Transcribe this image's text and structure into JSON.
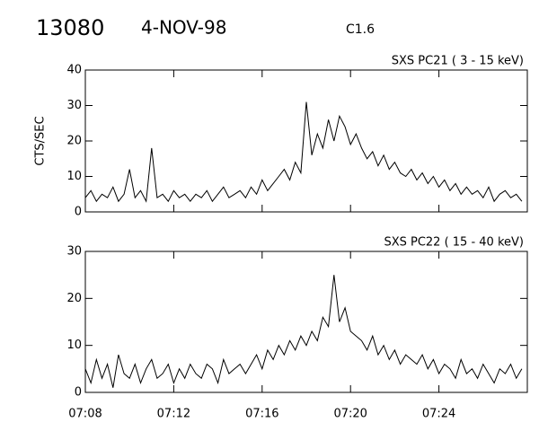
{
  "header": {
    "id": "13080",
    "date": "4-NOV-98",
    "class": "C1.6"
  },
  "chart_data": [
    {
      "type": "line",
      "title": "SXS PC21  (  3 - 15 keV)",
      "y_label": "CTS/SEC",
      "color": "#000000",
      "xlim": [
        428,
        448
      ],
      "xticks": [
        428,
        432,
        436,
        440,
        444
      ],
      "ylim": [
        0,
        40
      ],
      "yticks": [
        0,
        10,
        20,
        30,
        40
      ],
      "x": [
        428,
        428.25,
        428.5,
        428.75,
        429,
        429.25,
        429.5,
        429.75,
        430,
        430.25,
        430.5,
        430.75,
        431,
        431.25,
        431.5,
        431.75,
        432,
        432.25,
        432.5,
        432.75,
        433,
        433.25,
        433.5,
        433.75,
        434,
        434.25,
        434.5,
        434.75,
        435,
        435.25,
        435.5,
        435.75,
        436,
        436.25,
        436.5,
        436.75,
        437,
        437.25,
        437.5,
        437.75,
        438,
        438.25,
        438.5,
        438.75,
        439,
        439.25,
        439.5,
        439.75,
        440,
        440.25,
        440.5,
        440.75,
        441,
        441.25,
        441.5,
        441.75,
        442,
        442.25,
        442.5,
        442.75,
        443,
        443.25,
        443.5,
        443.75,
        444,
        444.25,
        444.5,
        444.75,
        445,
        445.25,
        445.5,
        445.75,
        446,
        446.25,
        446.5,
        446.75,
        447,
        447.25,
        447.5,
        447.75
      ],
      "values": [
        4,
        6,
        3,
        5,
        4,
        7,
        3,
        5,
        12,
        4,
        6,
        3,
        18,
        4,
        5,
        3,
        6,
        4,
        5,
        3,
        5,
        4,
        6,
        3,
        5,
        7,
        4,
        5,
        6,
        4,
        7,
        5,
        9,
        6,
        8,
        10,
        12,
        9,
        14,
        11,
        31,
        16,
        22,
        18,
        26,
        20,
        27,
        24,
        19,
        22,
        18,
        15,
        17,
        13,
        16,
        12,
        14,
        11,
        10,
        12,
        9,
        11,
        8,
        10,
        7,
        9,
        6,
        8,
        5,
        7,
        5,
        6,
        4,
        7,
        3,
        5,
        6,
        4,
        5,
        3
      ]
    },
    {
      "type": "line",
      "title": "SXS PC22  ( 15 - 40 keV)",
      "color": "#000000",
      "xlim": [
        428,
        448
      ],
      "xticks": [
        {
          "value": 428,
          "label": "07:08"
        },
        {
          "value": 432,
          "label": "07:12"
        },
        {
          "value": 436,
          "label": "07:16"
        },
        {
          "value": 440,
          "label": "07:20"
        },
        {
          "value": 444,
          "label": "07:24"
        }
      ],
      "ylim": [
        0,
        30
      ],
      "yticks": [
        0,
        10,
        20,
        30
      ],
      "x": [
        428,
        428.25,
        428.5,
        428.75,
        429,
        429.25,
        429.5,
        429.75,
        430,
        430.25,
        430.5,
        430.75,
        431,
        431.25,
        431.5,
        431.75,
        432,
        432.25,
        432.5,
        432.75,
        433,
        433.25,
        433.5,
        433.75,
        434,
        434.25,
        434.5,
        434.75,
        435,
        435.25,
        435.5,
        435.75,
        436,
        436.25,
        436.5,
        436.75,
        437,
        437.25,
        437.5,
        437.75,
        438,
        438.25,
        438.5,
        438.75,
        439,
        439.25,
        439.5,
        439.75,
        440,
        440.25,
        440.5,
        440.75,
        441,
        441.25,
        441.5,
        441.75,
        442,
        442.25,
        442.5,
        442.75,
        443,
        443.25,
        443.5,
        443.75,
        444,
        444.25,
        444.5,
        444.75,
        445,
        445.25,
        445.5,
        445.75,
        446,
        446.25,
        446.5,
        446.75,
        447,
        447.25,
        447.5,
        447.75
      ],
      "values": [
        5,
        2,
        7,
        3,
        6,
        1,
        8,
        4,
        3,
        6,
        2,
        5,
        7,
        3,
        4,
        6,
        2,
        5,
        3,
        6,
        4,
        3,
        6,
        5,
        2,
        7,
        4,
        5,
        6,
        4,
        6,
        8,
        5,
        9,
        7,
        10,
        8,
        11,
        9,
        12,
        10,
        13,
        11,
        16,
        14,
        25,
        15,
        18,
        13,
        12,
        11,
        9,
        12,
        8,
        10,
        7,
        9,
        6,
        8,
        7,
        6,
        8,
        5,
        7,
        4,
        6,
        5,
        3,
        7,
        4,
        5,
        3,
        6,
        4,
        2,
        5,
        4,
        6,
        3,
        5
      ]
    }
  ]
}
